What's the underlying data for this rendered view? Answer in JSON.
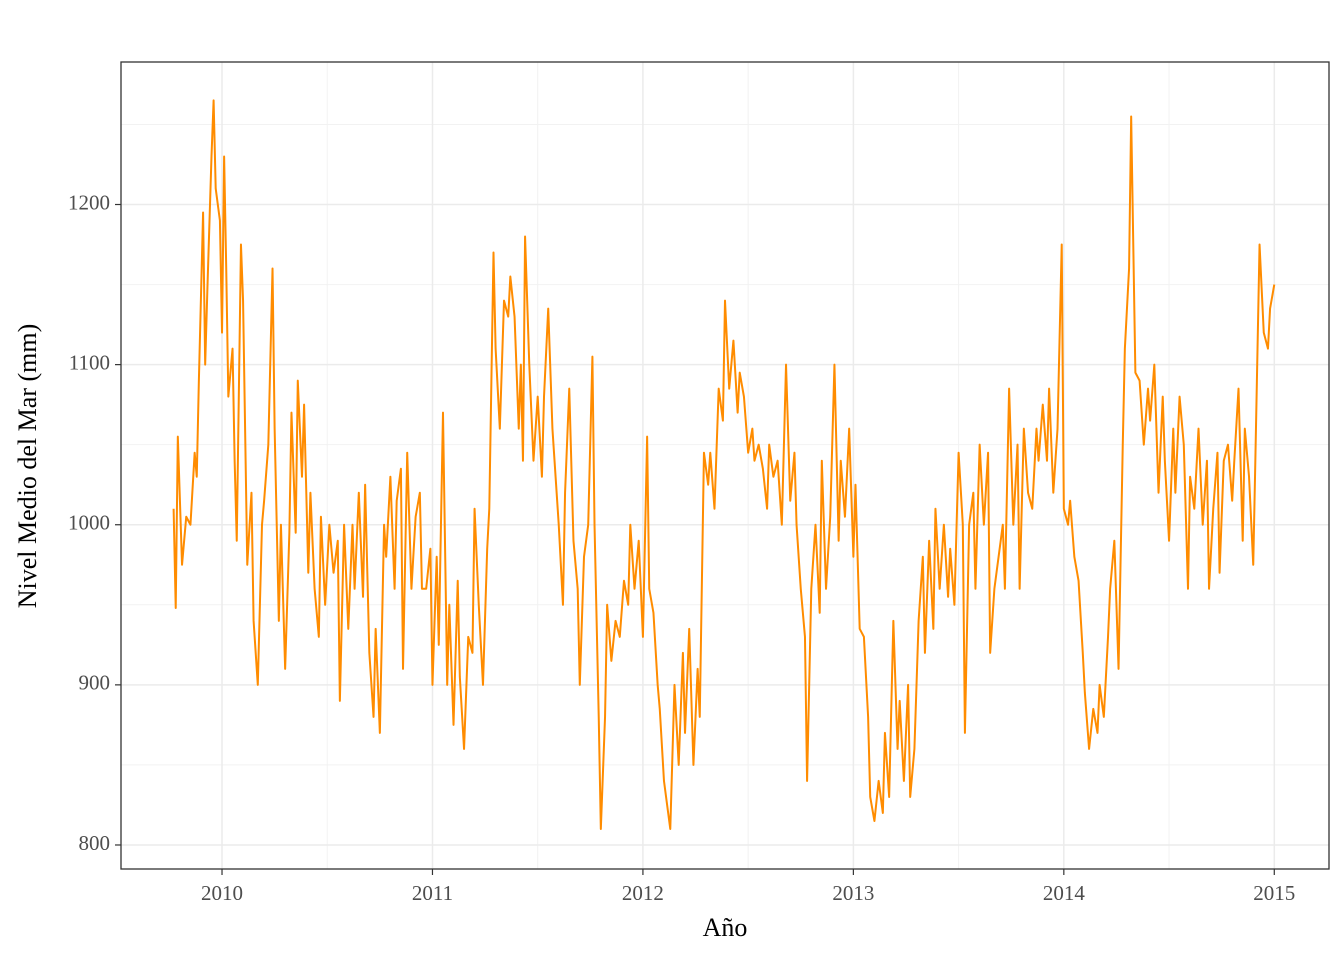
{
  "chart_data": {
    "type": "line",
    "xlabel": "Año",
    "ylabel": "Nivel Medio del Mar (mm)",
    "xlim": [
      2009.52,
      2015.26
    ],
    "ylim": [
      785,
      1289
    ],
    "xticks": [
      2010,
      2011,
      2012,
      2013,
      2014,
      2015
    ],
    "yticks": [
      800,
      900,
      1000,
      1100,
      1200
    ],
    "grid": true,
    "color": "#ff8c00",
    "x": [
      2009.77,
      2009.78,
      2009.79,
      2009.81,
      2009.83,
      2009.85,
      2009.87,
      2009.88,
      2009.89,
      2009.91,
      2009.92,
      2009.93,
      2009.95,
      2009.96,
      2009.97,
      2009.99,
      2010.0,
      2010.01,
      2010.02,
      2010.03,
      2010.05,
      2010.06,
      2010.07,
      2010.09,
      2010.1,
      2010.12,
      2010.14,
      2010.15,
      2010.17,
      2010.19,
      2010.2,
      2010.22,
      2010.24,
      2010.25,
      2010.27,
      2010.28,
      2010.3,
      2010.32,
      2010.33,
      2010.35,
      2010.36,
      2010.38,
      2010.39,
      2010.41,
      2010.42,
      2010.44,
      2010.46,
      2010.47,
      2010.49,
      2010.51,
      2010.53,
      2010.55,
      2010.56,
      2010.58,
      2010.6,
      2010.62,
      2010.63,
      2010.65,
      2010.67,
      2010.68,
      2010.7,
      2010.72,
      2010.73,
      2010.75,
      2010.77,
      2010.78,
      2010.8,
      2010.82,
      2010.83,
      2010.85,
      2010.86,
      2010.88,
      2010.9,
      2010.92,
      2010.94,
      2010.95,
      2010.97,
      2010.99,
      2011.0,
      2011.02,
      2011.03,
      2011.05,
      2011.07,
      2011.08,
      2011.1,
      2011.12,
      2011.13,
      2011.15,
      2011.17,
      2011.19,
      2011.2,
      2011.22,
      2011.24,
      2011.26,
      2011.27,
      2011.29,
      2011.3,
      2011.32,
      2011.34,
      2011.36,
      2011.37,
      2011.39,
      2011.41,
      2011.42,
      2011.43,
      2011.44,
      2011.46,
      2011.48,
      2011.5,
      2011.52,
      2011.53,
      2011.55,
      2011.57,
      2011.58,
      2011.6,
      2011.62,
      2011.63,
      2011.65,
      2011.67,
      2011.69,
      2011.7,
      2011.72,
      2011.74,
      2011.76,
      2011.77,
      2011.79,
      2011.8,
      2011.82,
      2011.83,
      2011.85,
      2011.87,
      2011.89,
      2011.91,
      2011.93,
      2011.94,
      2011.96,
      2011.98,
      2012.0,
      2012.02,
      2012.03,
      2012.05,
      2012.07,
      2012.08,
      2012.1,
      2012.12,
      2012.13,
      2012.15,
      2012.17,
      2012.19,
      2012.2,
      2012.22,
      2012.24,
      2012.26,
      2012.27,
      2012.29,
      2012.31,
      2012.32,
      2012.34,
      2012.36,
      2012.38,
      2012.39,
      2012.41,
      2012.43,
      2012.45,
      2012.46,
      2012.48,
      2012.5,
      2012.52,
      2012.53,
      2012.55,
      2012.57,
      2012.59,
      2012.6,
      2012.62,
      2012.64,
      2012.66,
      2012.68,
      2012.7,
      2012.72,
      2012.73,
      2012.75,
      2012.77,
      2012.78,
      2012.8,
      2012.82,
      2012.84,
      2012.85,
      2012.87,
      2012.89,
      2012.91,
      2012.93,
      2012.94,
      2012.96,
      2012.98,
      2013.0,
      2013.01,
      2013.03,
      2013.05,
      2013.07,
      2013.08,
      2013.1,
      2013.12,
      2013.14,
      2013.15,
      2013.17,
      2013.19,
      2013.21,
      2013.22,
      2013.24,
      2013.26,
      2013.27,
      2013.29,
      2013.31,
      2013.33,
      2013.34,
      2013.36,
      2013.38,
      2013.39,
      2013.41,
      2013.43,
      2013.45,
      2013.46,
      2013.48,
      2013.5,
      2013.52,
      2013.53,
      2013.55,
      2013.57,
      2013.58,
      2013.6,
      2013.62,
      2013.64,
      2013.65,
      2013.67,
      2013.69,
      2013.71,
      2013.72,
      2013.74,
      2013.76,
      2013.78,
      2013.79,
      2013.81,
      2013.83,
      2013.85,
      2013.87,
      2013.88,
      2013.9,
      2013.92,
      2013.93,
      2013.95,
      2013.97,
      2013.99,
      2014.0,
      2014.02,
      2014.03,
      2014.05,
      2014.07,
      2014.09,
      2014.1,
      2014.12,
      2014.14,
      2014.16,
      2014.17,
      2014.19,
      2014.21,
      2014.22,
      2014.24,
      2014.26,
      2014.28,
      2014.29,
      2014.31,
      2014.32,
      2014.34,
      2014.36,
      2014.38,
      2014.4,
      2014.41,
      2014.43,
      2014.45,
      2014.47,
      2014.48,
      2014.5,
      2014.52,
      2014.53,
      2014.55,
      2014.57,
      2014.59,
      2014.6,
      2014.62,
      2014.64,
      2014.66,
      2014.68,
      2014.69,
      2014.71,
      2014.73,
      2014.74,
      2014.76,
      2014.78,
      2014.8,
      2014.81,
      2014.83,
      2014.85,
      2014.86,
      2014.88,
      2014.9,
      2014.91,
      2014.93,
      2014.95,
      2014.97,
      2014.98,
      2015.0
    ],
    "values": [
      1010,
      948,
      1055,
      975,
      1005,
      1000,
      1045,
      1030,
      1090,
      1195,
      1100,
      1145,
      1230,
      1265,
      1210,
      1190,
      1120,
      1230,
      1160,
      1080,
      1110,
      1040,
      990,
      1175,
      1140,
      975,
      1020,
      940,
      900,
      1000,
      1015,
      1050,
      1160,
      1060,
      940,
      1000,
      910,
      995,
      1070,
      995,
      1090,
      1030,
      1075,
      970,
      1020,
      960,
      930,
      1005,
      950,
      1000,
      970,
      990,
      890,
      1000,
      935,
      1000,
      960,
      1020,
      955,
      1025,
      920,
      880,
      935,
      870,
      1000,
      980,
      1030,
      960,
      1015,
      1035,
      910,
      1045,
      960,
      1005,
      1020,
      960,
      960,
      985,
      900,
      980,
      925,
      1070,
      900,
      950,
      875,
      965,
      905,
      860,
      930,
      920,
      1010,
      950,
      900,
      985,
      1010,
      1170,
      1110,
      1060,
      1140,
      1130,
      1155,
      1130,
      1060,
      1100,
      1040,
      1180,
      1100,
      1040,
      1080,
      1030,
      1080,
      1135,
      1060,
      1040,
      1000,
      950,
      1020,
      1085,
      990,
      960,
      900,
      980,
      1000,
      1105,
      1000,
      880,
      810,
      880,
      950,
      915,
      940,
      930,
      965,
      950,
      1000,
      960,
      990,
      930,
      1055,
      960,
      945,
      900,
      885,
      840,
      820,
      810,
      900,
      850,
      920,
      870,
      935,
      850,
      910,
      880,
      1045,
      1025,
      1045,
      1010,
      1085,
      1065,
      1140,
      1085,
      1115,
      1070,
      1095,
      1080,
      1045,
      1060,
      1040,
      1050,
      1035,
      1010,
      1050,
      1030,
      1040,
      1000,
      1100,
      1015,
      1045,
      1000,
      960,
      930,
      840,
      960,
      1000,
      945,
      1040,
      960,
      1005,
      1100,
      990,
      1040,
      1005,
      1060,
      980,
      1025,
      935,
      930,
      880,
      830,
      815,
      840,
      820,
      870,
      830,
      940,
      860,
      890,
      840,
      900,
      830,
      860,
      940,
      980,
      920,
      990,
      935,
      1010,
      960,
      1000,
      955,
      985,
      950,
      1045,
      1000,
      870,
      1000,
      1020,
      960,
      1050,
      1000,
      1045,
      920,
      960,
      980,
      1000,
      960,
      1085,
      1000,
      1050,
      960,
      1060,
      1020,
      1010,
      1060,
      1040,
      1075,
      1040,
      1085,
      1020,
      1060,
      1175,
      1010,
      1000,
      1015,
      980,
      965,
      920,
      895,
      860,
      885,
      870,
      900,
      880,
      930,
      960,
      990,
      910,
      1050,
      1110,
      1160,
      1255,
      1095,
      1090,
      1050,
      1085,
      1065,
      1100,
      1020,
      1080,
      1040,
      990,
      1060,
      1020,
      1080,
      1050,
      960,
      1030,
      1010,
      1060,
      1000,
      1040,
      960,
      1010,
      1045,
      970,
      1040,
      1050,
      1015,
      1040,
      1085,
      990,
      1060,
      1030,
      975,
      1040,
      1175,
      1120,
      1110,
      1135,
      1150
    ]
  }
}
